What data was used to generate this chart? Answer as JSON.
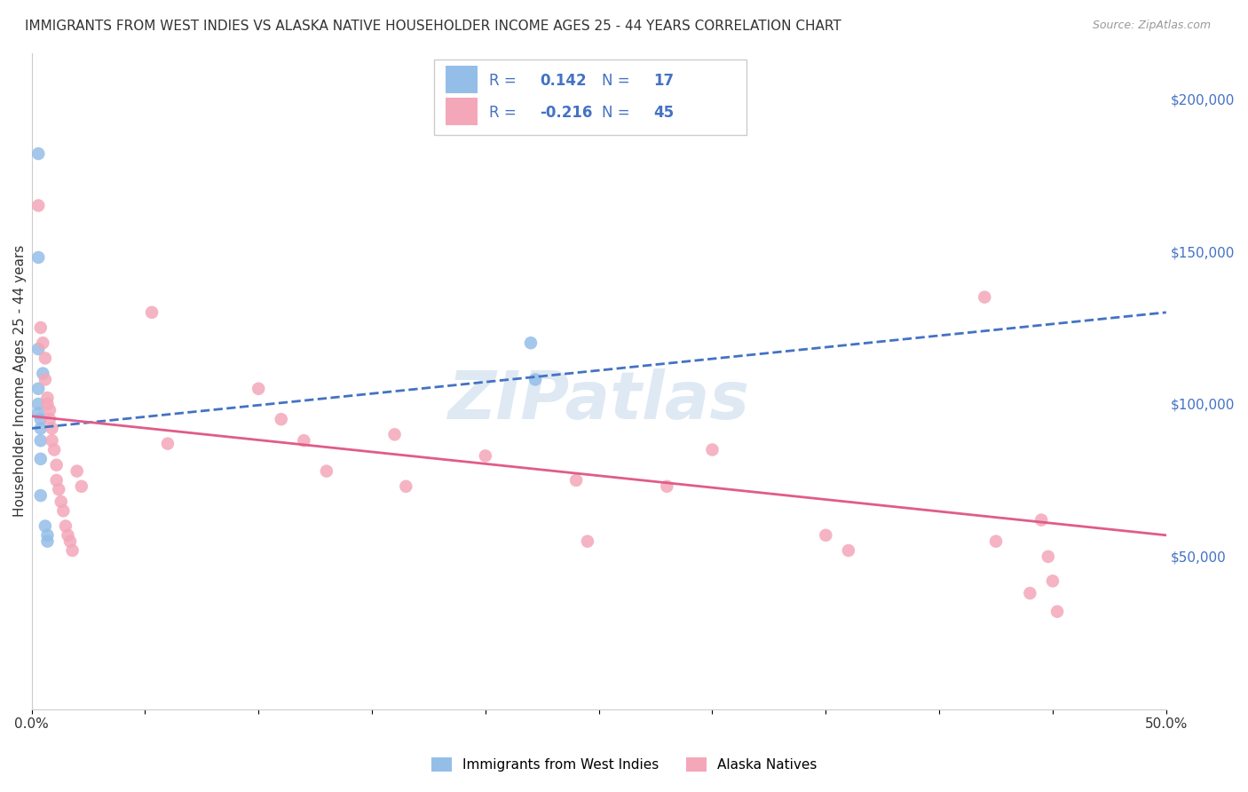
{
  "title": "IMMIGRANTS FROM WEST INDIES VS ALASKA NATIVE HOUSEHOLDER INCOME AGES 25 - 44 YEARS CORRELATION CHART",
  "source": "Source: ZipAtlas.com",
  "ylabel": "Householder Income Ages 25 - 44 years",
  "xlim": [
    0,
    0.5
  ],
  "ylim": [
    0,
    215000
  ],
  "xticks": [
    0.0,
    0.05,
    0.1,
    0.15,
    0.2,
    0.25,
    0.3,
    0.35,
    0.4,
    0.45,
    0.5
  ],
  "yticks_right": [
    50000,
    100000,
    150000,
    200000
  ],
  "ytick_labels_right": [
    "$50,000",
    "$100,000",
    "$150,000",
    "$200,000"
  ],
  "blue_R": "0.142",
  "blue_N": "17",
  "pink_R": "-0.216",
  "pink_N": "45",
  "blue_line_y0": 92000,
  "blue_line_y1": 130000,
  "pink_line_y0": 96000,
  "pink_line_y1": 57000,
  "watermark": "ZIPatlas",
  "title_fontsize": 11,
  "blue_color": "#94BEE8",
  "blue_line_color": "#4472C4",
  "pink_color": "#F4A7B9",
  "pink_line_color": "#E05C8A",
  "grid_color": "#D8D8D8",
  "background_color": "#FFFFFF",
  "legend_all_blue": true,
  "blue_scatter_x": [
    0.003,
    0.003,
    0.003,
    0.003,
    0.003,
    0.003,
    0.004,
    0.004,
    0.004,
    0.004,
    0.004,
    0.005,
    0.006,
    0.007,
    0.007,
    0.22,
    0.222
  ],
  "blue_scatter_y": [
    182000,
    148000,
    118000,
    105000,
    100000,
    97000,
    95000,
    92000,
    88000,
    82000,
    70000,
    110000,
    60000,
    57000,
    55000,
    120000,
    108000
  ],
  "pink_scatter_x": [
    0.003,
    0.004,
    0.005,
    0.006,
    0.006,
    0.007,
    0.007,
    0.008,
    0.008,
    0.009,
    0.009,
    0.01,
    0.011,
    0.011,
    0.012,
    0.013,
    0.014,
    0.015,
    0.016,
    0.017,
    0.018,
    0.02,
    0.022,
    0.053,
    0.06,
    0.1,
    0.11,
    0.12,
    0.13,
    0.16,
    0.165,
    0.2,
    0.24,
    0.245,
    0.28,
    0.3,
    0.35,
    0.36,
    0.42,
    0.425,
    0.44,
    0.445,
    0.448,
    0.45,
    0.452
  ],
  "pink_scatter_y": [
    165000,
    125000,
    120000,
    115000,
    108000,
    102000,
    100000,
    98000,
    95000,
    92000,
    88000,
    85000,
    80000,
    75000,
    72000,
    68000,
    65000,
    60000,
    57000,
    55000,
    52000,
    78000,
    73000,
    130000,
    87000,
    105000,
    95000,
    88000,
    78000,
    90000,
    73000,
    83000,
    75000,
    55000,
    73000,
    85000,
    57000,
    52000,
    135000,
    55000,
    38000,
    62000,
    50000,
    42000,
    32000
  ]
}
